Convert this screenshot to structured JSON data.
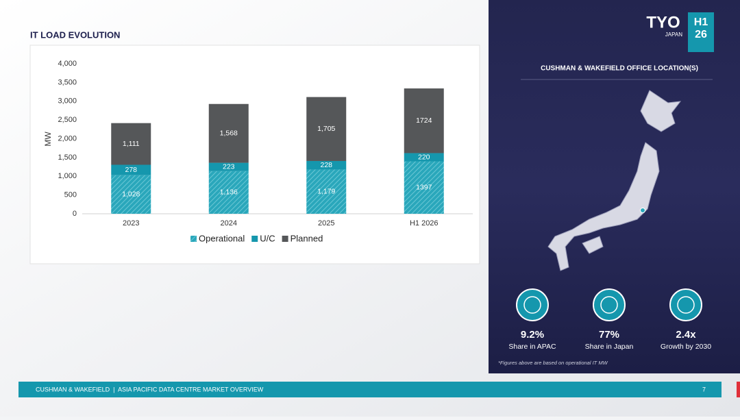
{
  "header": {
    "title": "IT LOAD EVOLUTION"
  },
  "chart_data": {
    "type": "bar",
    "stacked": true,
    "y_label": "MW",
    "categories": [
      "2023",
      "2024",
      "2025",
      "H1 2026"
    ],
    "series": [
      {
        "name": "Operational",
        "color": "#2aa7bb",
        "hatched": true,
        "values": [
          1028,
          1136,
          1179,
          1397
        ],
        "value_labels": [
          "1,028",
          "1,136",
          "1,179",
          "1397"
        ]
      },
      {
        "name": "U/C",
        "color": "#1597ad",
        "values": [
          278,
          223,
          228,
          220
        ]
      },
      {
        "name": "Planned",
        "color": "#555759",
        "values": [
          1111,
          1568,
          1705,
          1724
        ],
        "value_labels": [
          "1,111",
          "1,568",
          "1,705",
          "1724"
        ]
      }
    ],
    "ylim": [
      0,
      4000
    ],
    "yticks": [
      0,
      500,
      {
        "value": 1000,
        "label": "1,000"
      },
      {
        "value": 1500,
        "label": "1,500"
      },
      {
        "value": 2000,
        "label": "2,000"
      },
      {
        "value": 2500,
        "label": "2,500"
      },
      {
        "value": 3000,
        "label": "3,000"
      },
      {
        "value": 3500,
        "label": "3,500"
      },
      {
        "value": 4000,
        "label": "4,000"
      }
    ],
    "grid": false,
    "legend": "bottom"
  },
  "panel": {
    "city": "TYO",
    "country": "JAPAN",
    "period_top": "H1",
    "period_bottom": "26",
    "map_title": "CUSHMAN & WAKEFIELD OFFICE LOCATION(S)",
    "stats": [
      {
        "value": "9.2%",
        "label": "Share in APAC"
      },
      {
        "value": "77%",
        "label": "Share in Japan"
      },
      {
        "value": "2.4x",
        "label": "Growth by 2030"
      }
    ],
    "note": "*Figures above are based on operational IT MW"
  },
  "footer": {
    "text": "CUSHMAN & WAKEFIELD  |  ASIA PACIFIC DATA CENTRE MARKET OVERVIEW",
    "page": "7"
  }
}
